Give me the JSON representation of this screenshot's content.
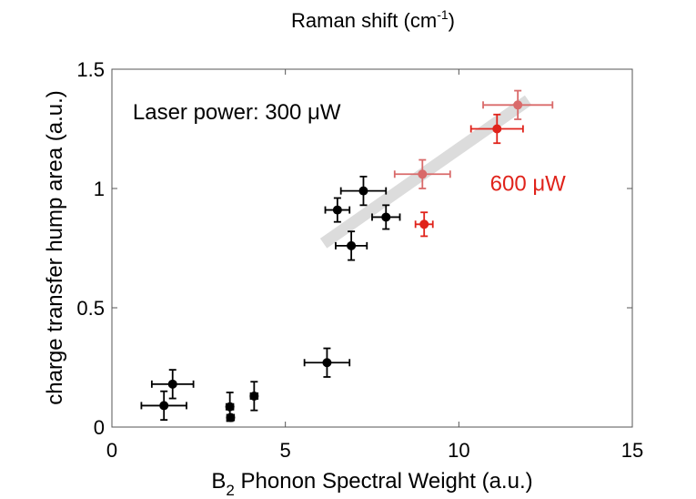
{
  "chart_data": {
    "type": "scatter",
    "top_title": {
      "text": "Raman shift (cm",
      "sup": "-1",
      "suffix": ")"
    },
    "xlabel": {
      "prefix": "B",
      "sub": "2",
      "suffix": " Phonon Spectral Weight (a.u.)"
    },
    "ylabel": "charge transfer hump area (a.u.)",
    "xlim": [
      0,
      15
    ],
    "ylim": [
      0,
      1.5
    ],
    "xticks": [
      0,
      5,
      10,
      15
    ],
    "xtick_labels": [
      "0",
      "5",
      "10",
      "15"
    ],
    "yticks": [
      0,
      0.5,
      1,
      1.5
    ],
    "ytick_labels": [
      "0",
      "0.5",
      "1",
      "1.5"
    ],
    "grid": false,
    "annotations": [
      {
        "text": "Laser power: 300 μW",
        "color": "#000000",
        "x": 0.6,
        "y": 1.29
      },
      {
        "text": "600 μW",
        "color": "#e0231b",
        "x": 10.9,
        "y": 0.99
      }
    ],
    "trend_line": {
      "x": [
        6.1,
        12.0
      ],
      "y": [
        0.77,
        1.37
      ],
      "color": "#dcdcdc"
    },
    "series": [
      {
        "name": "300 μW",
        "color": "#000000",
        "points": [
          {
            "x": 1.5,
            "y": 0.09,
            "xerr": 0.65,
            "yerr": 0.06
          },
          {
            "x": 1.75,
            "y": 0.18,
            "xerr": 0.6,
            "yerr": 0.06
          },
          {
            "x": 3.4,
            "y": 0.085,
            "xerr": 0.1,
            "yerr": 0.06
          },
          {
            "x": 3.42,
            "y": 0.04,
            "xerr": 0.1,
            "yerr": 0.0
          },
          {
            "x": 4.1,
            "y": 0.13,
            "xerr": 0.1,
            "yerr": 0.06
          },
          {
            "x": 6.2,
            "y": 0.27,
            "xerr": 0.65,
            "yerr": 0.06
          },
          {
            "x": 6.5,
            "y": 0.91,
            "xerr": 0.35,
            "yerr": 0.05
          },
          {
            "x": 6.9,
            "y": 0.76,
            "xerr": 0.45,
            "yerr": 0.06
          },
          {
            "x": 7.25,
            "y": 0.99,
            "xerr": 0.65,
            "yerr": 0.06
          },
          {
            "x": 7.9,
            "y": 0.88,
            "xerr": 0.4,
            "yerr": 0.05
          }
        ]
      },
      {
        "name": "600 μW",
        "color": "#e0231b",
        "points": [
          {
            "x": 8.95,
            "y": 1.06,
            "xerr": 0.8,
            "yerr": 0.06,
            "color": "#d96a6a"
          },
          {
            "x": 9.0,
            "y": 0.85,
            "xerr": 0.25,
            "yerr": 0.05
          },
          {
            "x": 11.1,
            "y": 1.25,
            "xerr": 0.75,
            "yerr": 0.06
          },
          {
            "x": 11.7,
            "y": 1.35,
            "xerr": 1.0,
            "yerr": 0.06,
            "color": "#d96a6a"
          }
        ]
      }
    ]
  }
}
